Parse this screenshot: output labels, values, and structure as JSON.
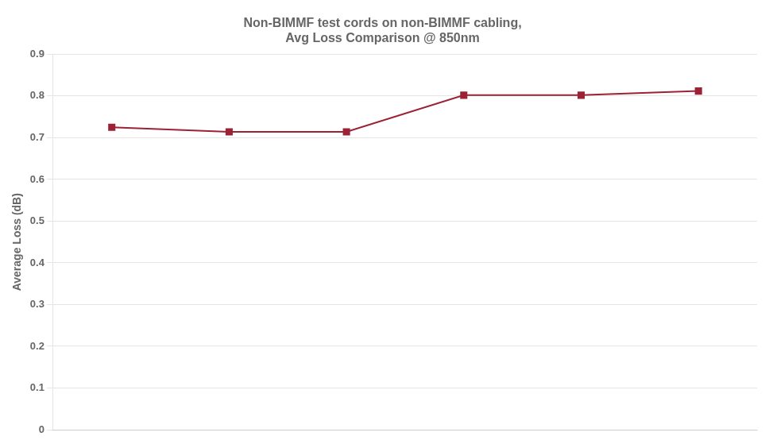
{
  "chart_data": {
    "type": "line",
    "title": "Non-BIMMF test cords on non-BIMMF cabling,\nAvg Loss Comparison @ 850nm",
    "y_label": "Average Loss (dB)",
    "x": [
      1,
      2,
      3,
      4,
      5,
      6
    ],
    "values": [
      0.725,
      0.714,
      0.714,
      0.802,
      0.802,
      0.812
    ],
    "color": "#9B2335",
    "marker": "square",
    "xlim": [
      0.5,
      6.5
    ],
    "ylim": [
      0,
      0.9
    ],
    "yticks": [
      0,
      0.1,
      0.2,
      0.3,
      0.4,
      0.5,
      0.6,
      0.7,
      0.8,
      0.9
    ],
    "grid": true,
    "tick_labels": "y"
  }
}
